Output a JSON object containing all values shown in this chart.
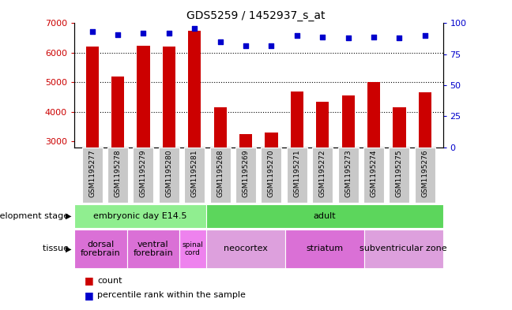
{
  "title": "GDS5259 / 1452937_s_at",
  "samples": [
    "GSM1195277",
    "GSM1195278",
    "GSM1195279",
    "GSM1195280",
    "GSM1195281",
    "GSM1195268",
    "GSM1195269",
    "GSM1195270",
    "GSM1195271",
    "GSM1195272",
    "GSM1195273",
    "GSM1195274",
    "GSM1195275",
    "GSM1195276"
  ],
  "counts": [
    6200,
    5200,
    6250,
    6220,
    6750,
    4150,
    3250,
    3300,
    4700,
    4350,
    4550,
    5000,
    4150,
    4650
  ],
  "percentiles": [
    93,
    91,
    92,
    92,
    96,
    85,
    82,
    82,
    90,
    89,
    88,
    89,
    88,
    90
  ],
  "ylim_left": [
    2800,
    7000
  ],
  "ylim_right": [
    0,
    100
  ],
  "yticks_left": [
    3000,
    4000,
    5000,
    6000,
    7000
  ],
  "yticks_right": [
    0,
    25,
    50,
    75,
    100
  ],
  "bar_color": "#cc0000",
  "dot_color": "#0000cc",
  "grid_color": "#000000",
  "development_stage_groups": [
    {
      "label": "embryonic day E14.5",
      "start": 0,
      "end": 5,
      "color": "#90ee90"
    },
    {
      "label": "adult",
      "start": 5,
      "end": 14,
      "color": "#5cd65c"
    }
  ],
  "tissue_groups": [
    {
      "label": "dorsal\nforebrain",
      "start": 0,
      "end": 2,
      "color": "#da70d6"
    },
    {
      "label": "ventral\nforebrain",
      "start": 2,
      "end": 4,
      "color": "#da70d6"
    },
    {
      "label": "spinal\ncord",
      "start": 4,
      "end": 5,
      "color": "#ee82ee"
    },
    {
      "label": "neocortex",
      "start": 5,
      "end": 8,
      "color": "#dda0dd"
    },
    {
      "label": "striatum",
      "start": 8,
      "end": 11,
      "color": "#da70d6"
    },
    {
      "label": "subventricular zone",
      "start": 11,
      "end": 14,
      "color": "#dda0dd"
    }
  ],
  "dev_stage_row_label": "development stage",
  "tissue_row_label": "tissue",
  "legend_count_label": "count",
  "legend_pct_label": "percentile rank within the sample",
  "bar_width": 0.5,
  "sample_bg_color": "#c8c8c8",
  "bg_color": "#ffffff"
}
